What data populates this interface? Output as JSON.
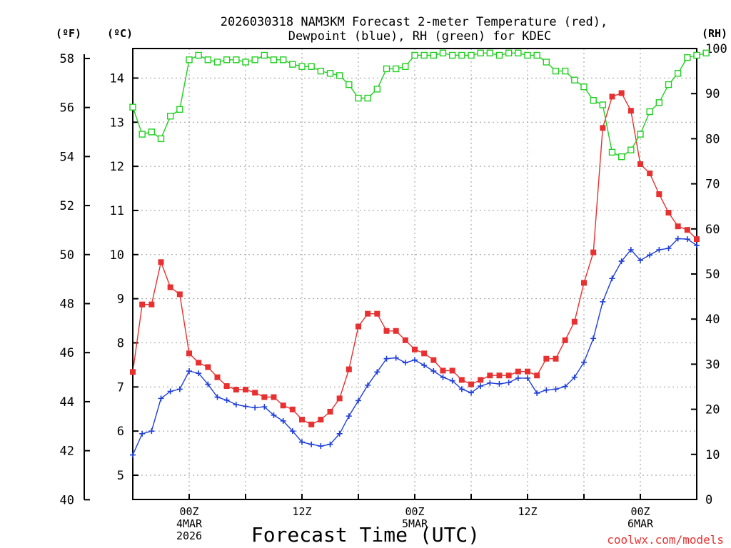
{
  "chart_data": {
    "type": "line",
    "title_line1": "2026030318 NAM3KM Forecast 2-meter Temperature (red),",
    "title_line2": "Dewpoint (blue), RH (green) for KDEC",
    "xlabel": "Forecast Time (UTC)",
    "credit": "coolwx.com/models",
    "unit_labels": {
      "fahrenheit": "(ºF)",
      "celsius": "(ºC)",
      "rh": "(RH)"
    },
    "x_range_hours": [
      -6,
      54
    ],
    "celsius_range": [
      4.45,
      14.67
    ],
    "rh_range": [
      0,
      100
    ],
    "fahrenheit_ticks": [
      40,
      42,
      44,
      46,
      48,
      50,
      52,
      54,
      56,
      58
    ],
    "celsius_ticks": [
      5,
      6,
      7,
      8,
      9,
      10,
      11,
      12,
      13,
      14
    ],
    "rh_ticks": [
      0,
      10,
      20,
      30,
      40,
      50,
      60,
      70,
      80,
      90,
      100
    ],
    "x_ticks": [
      {
        "hour": 0,
        "lines": [
          "00Z",
          "4MAR",
          "2026"
        ]
      },
      {
        "hour": 12,
        "lines": [
          "12Z"
        ]
      },
      {
        "hour": 24,
        "lines": [
          "00Z",
          "5MAR"
        ]
      },
      {
        "hour": 36,
        "lines": [
          "12Z"
        ]
      },
      {
        "hour": 48,
        "lines": [
          "00Z",
          "6MAR"
        ]
      }
    ],
    "series": [
      {
        "name": "2-meter Temperature",
        "units": "C",
        "color": "#e83030",
        "marker": "filled-square",
        "start_hour": -6,
        "step_hours": 1,
        "values": [
          7.34,
          8.87,
          8.87,
          9.83,
          9.26,
          9.1,
          7.76,
          7.55,
          7.45,
          7.22,
          7.02,
          6.94,
          6.94,
          6.87,
          6.77,
          6.77,
          6.58,
          6.49,
          6.26,
          6.15,
          6.26,
          6.44,
          6.74,
          7.4,
          8.37,
          8.66,
          8.66,
          8.27,
          8.27,
          8.06,
          7.85,
          7.76,
          7.61,
          7.37,
          7.37,
          7.16,
          7.06,
          7.16,
          7.26,
          7.26,
          7.26,
          7.35,
          7.35,
          7.26,
          7.64,
          7.64,
          8.06,
          8.48,
          9.36,
          10.05,
          12.87,
          13.58,
          13.66,
          13.26,
          12.05,
          11.84,
          11.37,
          10.95,
          10.64,
          10.56,
          10.35
        ]
      },
      {
        "name": "Dewpoint",
        "units": "C",
        "color": "#1f3fd8",
        "marker": "plus",
        "start_hour": -6,
        "step_hours": 1,
        "values": [
          5.46,
          5.94,
          6.0,
          6.74,
          6.9,
          6.95,
          7.36,
          7.31,
          7.06,
          6.77,
          6.7,
          6.6,
          6.56,
          6.53,
          6.55,
          6.36,
          6.23,
          6.0,
          5.75,
          5.7,
          5.66,
          5.7,
          5.94,
          6.34,
          6.69,
          7.04,
          7.34,
          7.64,
          7.66,
          7.55,
          7.61,
          7.49,
          7.36,
          7.22,
          7.14,
          6.95,
          6.87,
          7.02,
          7.09,
          7.07,
          7.1,
          7.2,
          7.2,
          6.86,
          6.93,
          6.95,
          7.01,
          7.22,
          7.56,
          8.1,
          8.93,
          9.46,
          9.85,
          10.11,
          9.87,
          9.99,
          10.11,
          10.14,
          10.36,
          10.35,
          10.21
        ]
      },
      {
        "name": "RH",
        "units": "%",
        "color": "#20d020",
        "marker": "open-square",
        "start_hour": -6,
        "step_hours": 1,
        "values": [
          87,
          81,
          81.5,
          80,
          85,
          86.5,
          97.5,
          98.5,
          97.5,
          97,
          97.5,
          97.5,
          97,
          97.5,
          98.5,
          97.5,
          97.5,
          96.5,
          96,
          96,
          95,
          94.5,
          94,
          92,
          89,
          89,
          91,
          95.5,
          95.5,
          96,
          98.5,
          98.5,
          98.5,
          99,
          98.5,
          98.5,
          98.5,
          99,
          99,
          98.5,
          99,
          99,
          98.5,
          98.5,
          97,
          95,
          95,
          93,
          91.5,
          88.5,
          87.5,
          77,
          76,
          77.5,
          81,
          86,
          88,
          92,
          94.5,
          98,
          98.5,
          99
        ]
      }
    ]
  }
}
